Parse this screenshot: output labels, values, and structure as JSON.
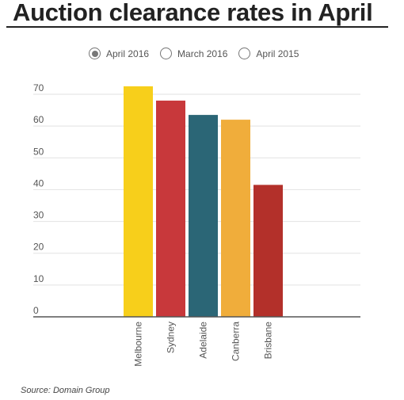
{
  "title": "Auction clearance rates in April",
  "toggles": [
    {
      "label": "April 2016",
      "checked": true
    },
    {
      "label": "March 2016",
      "checked": false
    },
    {
      "label": "April 2015",
      "checked": false
    }
  ],
  "source": "Source: Domain Group",
  "chart_data": {
    "type": "bar",
    "categories": [
      "Melbourne",
      "Sydney",
      "Adelaide",
      "Canberra",
      "Brisbane"
    ],
    "values": [
      72.5,
      68,
      63.5,
      62,
      41.5
    ],
    "colors": [
      "#f7cf1b",
      "#c8383b",
      "#2b6676",
      "#f0ad3b",
      "#b3302a"
    ],
    "yticks": [
      0,
      10,
      20,
      30,
      40,
      50,
      60,
      70
    ],
    "ylim": [
      0,
      75
    ],
    "grid": true
  }
}
